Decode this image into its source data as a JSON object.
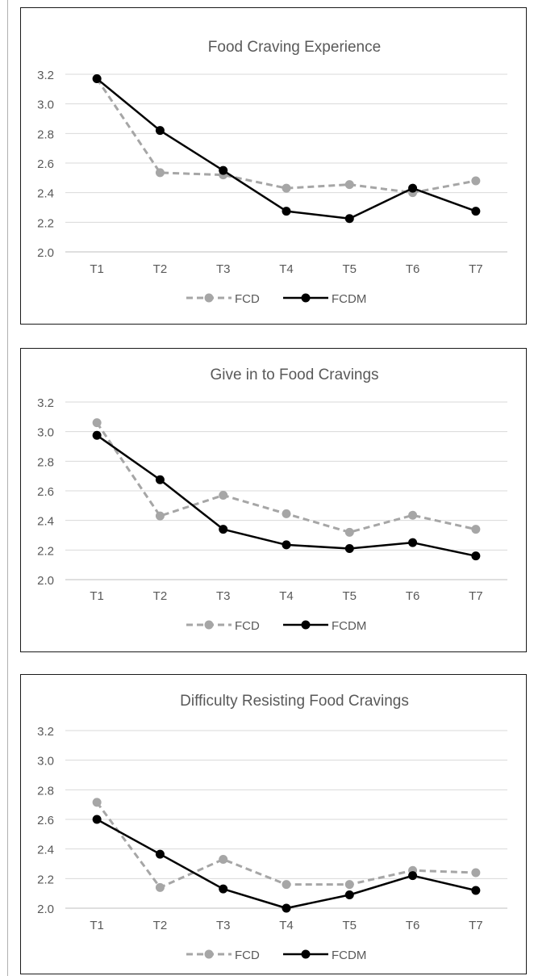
{
  "chart_data": [
    {
      "type": "line",
      "title": "Food Craving Experience",
      "categories": [
        "T1",
        "T2",
        "T3",
        "T4",
        "T5",
        "T6",
        "T7"
      ],
      "yticks": [
        "2.0",
        "2.2",
        "2.4",
        "2.6",
        "2.8",
        "3.0",
        "3.2"
      ],
      "ylim": [
        2.0,
        3.2
      ],
      "grid": true,
      "legend": "bottom",
      "series": [
        {
          "name": "FCD",
          "values": [
            3.17,
            2.535,
            2.52,
            2.43,
            2.455,
            2.4,
            2.48
          ],
          "color": "#a6a6a6",
          "style": "dashed"
        },
        {
          "name": "FCDM",
          "values": [
            3.17,
            2.82,
            2.55,
            2.275,
            2.225,
            2.43,
            2.275
          ],
          "color": "#000000",
          "style": "solid"
        }
      ]
    },
    {
      "type": "line",
      "title": "Give in to Food Cravings",
      "categories": [
        "T1",
        "T2",
        "T3",
        "T4",
        "T5",
        "T6",
        "T7"
      ],
      "yticks": [
        "2.0",
        "2.2",
        "2.4",
        "2.6",
        "2.8",
        "3.0",
        "3.2"
      ],
      "ylim": [
        2.0,
        3.2
      ],
      "grid": true,
      "legend": "bottom",
      "series": [
        {
          "name": "FCD",
          "values": [
            3.06,
            2.43,
            2.57,
            2.445,
            2.32,
            2.435,
            2.34
          ],
          "color": "#a6a6a6",
          "style": "dashed"
        },
        {
          "name": "FCDM",
          "values": [
            2.975,
            2.675,
            2.34,
            2.235,
            2.21,
            2.25,
            2.16
          ],
          "color": "#000000",
          "style": "solid"
        }
      ]
    },
    {
      "type": "line",
      "title": "Difficulty Resisting Food Cravings",
      "categories": [
        "T1",
        "T2",
        "T3",
        "T4",
        "T5",
        "T6",
        "T7"
      ],
      "yticks": [
        "2.0",
        "2.2",
        "2.4",
        "2.6",
        "2.8",
        "3.0",
        "3.2"
      ],
      "ylim": [
        2.0,
        3.2
      ],
      "grid": true,
      "legend": "bottom",
      "series": [
        {
          "name": "FCD",
          "values": [
            2.715,
            2.14,
            2.33,
            2.16,
            2.16,
            2.255,
            2.24
          ],
          "color": "#a6a6a6",
          "style": "dashed"
        },
        {
          "name": "FCDM",
          "values": [
            2.6,
            2.365,
            2.13,
            2.0,
            2.09,
            2.22,
            2.12
          ],
          "color": "#000000",
          "style": "solid"
        }
      ]
    }
  ]
}
